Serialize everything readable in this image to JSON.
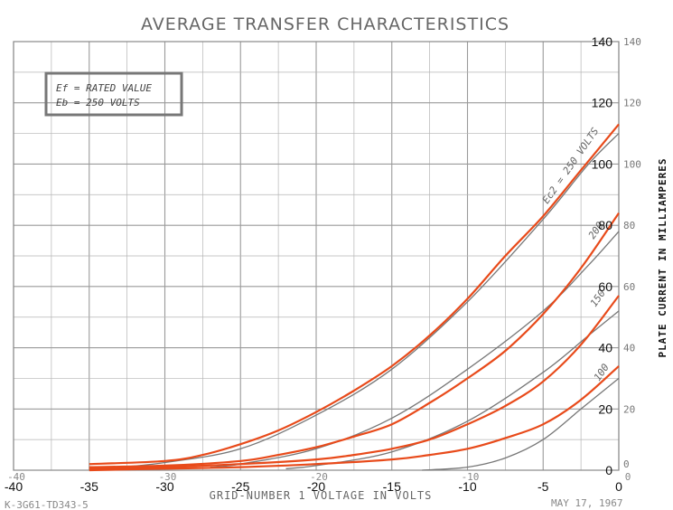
{
  "chart_data": {
    "type": "line",
    "title": "AVERAGE TRANSFER CHARACTERISTICS",
    "xlabel": "GRID-NUMBER 1 VOLTAGE IN VOLTS",
    "ylabel": "PLATE CURRENT IN MILLIAMPERES",
    "xlim": [
      -40,
      0
    ],
    "ylim": [
      0,
      140
    ],
    "x_ticks": [
      "-40",
      "-35",
      "-30",
      "-25",
      "-20",
      "-15",
      "-10",
      "-5",
      "0"
    ],
    "y_ticks": [
      "0",
      "20",
      "40",
      "60",
      "80",
      "100",
      "120",
      "140"
    ],
    "faint_x_ticks": [
      "-40",
      "-30",
      "-20",
      "-10",
      "0"
    ],
    "right_y_ticks": [
      "0",
      "20",
      "40",
      "60",
      "80",
      "100",
      "120",
      "140"
    ],
    "grid": true,
    "legend_box": [
      "Ef = RATED VALUE",
      "Eb = 250 VOLTS"
    ],
    "footer_left": "K-3G61-TD343-5",
    "footer_right": "MAY 17, 1967",
    "colors": {
      "red": "#e84a1a",
      "gray": "#777777",
      "grid": "#b5b5b5"
    },
    "series": [
      {
        "name": "Ec2 = 250 VOLTS",
        "color": "red",
        "points": [
          [
            -35,
            2
          ],
          [
            -30,
            3
          ],
          [
            -27.5,
            5
          ],
          [
            -25,
            8.5
          ],
          [
            -22.5,
            13
          ],
          [
            -20,
            19
          ],
          [
            -17.5,
            26
          ],
          [
            -15,
            34
          ],
          [
            -12.5,
            44
          ],
          [
            -10,
            56
          ],
          [
            -7.5,
            70
          ],
          [
            -5,
            83
          ],
          [
            -2.5,
            98
          ],
          [
            0,
            113
          ]
        ]
      },
      {
        "name": "200",
        "color": "red",
        "points": [
          [
            -35,
            1
          ],
          [
            -30,
            1.5
          ],
          [
            -25,
            3
          ],
          [
            -22.5,
            5
          ],
          [
            -20,
            7.5
          ],
          [
            -17.5,
            11
          ],
          [
            -15,
            15
          ],
          [
            -12.5,
            22
          ],
          [
            -10,
            30
          ],
          [
            -7.5,
            39
          ],
          [
            -5,
            51
          ],
          [
            -2.5,
            66
          ],
          [
            0,
            84
          ]
        ]
      },
      {
        "name": "150",
        "color": "red",
        "points": [
          [
            -35,
            0.5
          ],
          [
            -30,
            1
          ],
          [
            -25,
            2
          ],
          [
            -20,
            3.5
          ],
          [
            -17.5,
            5
          ],
          [
            -15,
            7
          ],
          [
            -12.5,
            10
          ],
          [
            -10,
            15
          ],
          [
            -7.5,
            21
          ],
          [
            -5,
            29
          ],
          [
            -2.5,
            41
          ],
          [
            0,
            57
          ]
        ]
      },
      {
        "name": "100",
        "color": "red",
        "points": [
          [
            -35,
            0
          ],
          [
            -30,
            0.5
          ],
          [
            -25,
            1
          ],
          [
            -20,
            2
          ],
          [
            -15,
            3.5
          ],
          [
            -12.5,
            5
          ],
          [
            -10,
            7
          ],
          [
            -7.5,
            10.5
          ],
          [
            -5,
            15
          ],
          [
            -2.5,
            23
          ],
          [
            0,
            34
          ]
        ]
      }
    ],
    "reference_curves": [
      {
        "color": "gray",
        "points": [
          [
            -33,
            1
          ],
          [
            -30,
            2.5
          ],
          [
            -25,
            7
          ],
          [
            -20,
            18
          ],
          [
            -15,
            33
          ],
          [
            -10,
            55
          ],
          [
            -5,
            82
          ],
          [
            -2,
            100
          ],
          [
            0,
            110
          ]
        ]
      },
      {
        "color": "gray",
        "points": [
          [
            -27,
            1
          ],
          [
            -25,
            2
          ],
          [
            -20,
            7
          ],
          [
            -15,
            17
          ],
          [
            -10,
            33
          ],
          [
            -5,
            52
          ],
          [
            -2,
            67
          ],
          [
            0,
            78
          ]
        ]
      },
      {
        "color": "gray",
        "points": [
          [
            -22,
            0.5
          ],
          [
            -20,
            1.5
          ],
          [
            -15,
            6
          ],
          [
            -10,
            16
          ],
          [
            -5,
            32
          ],
          [
            -2,
            44
          ],
          [
            0,
            52
          ]
        ]
      },
      {
        "color": "gray",
        "points": [
          [
            -13,
            0
          ],
          [
            -10,
            1
          ],
          [
            -7.5,
            4
          ],
          [
            -5,
            10
          ],
          [
            -2.5,
            20
          ],
          [
            0,
            30
          ]
        ]
      }
    ]
  }
}
